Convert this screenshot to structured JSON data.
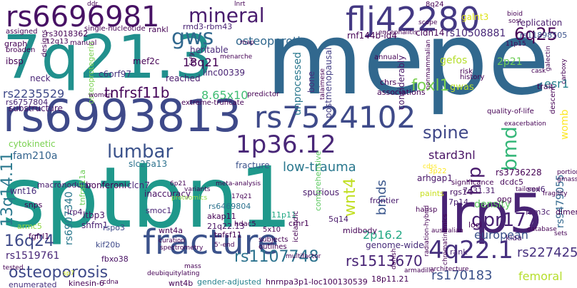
{
  "words": [
    {
      "text": "sptbn1",
      "color": "#1f988b"
    },
    {
      "text": "mepe",
      "color": "#31688e"
    },
    {
      "text": "7q21.3",
      "color": "#21908d"
    },
    {
      "text": "rs6993813",
      "color": "#3e4989"
    },
    {
      "text": "lrp5",
      "color": "#482374"
    },
    {
      "text": "fracture",
      "color": "#3b528b"
    },
    {
      "text": "rs6696981",
      "color": "#471164"
    },
    {
      "text": "flj42280",
      "color": "#443983"
    },
    {
      "text": "rs7524102",
      "color": "#3e4a89"
    },
    {
      "text": "4q22.1",
      "color": "#46307e"
    },
    {
      "text": "1p36.12",
      "color": "#482677"
    },
    {
      "text": "bmd",
      "color": "#35b779"
    },
    {
      "text": "mineral",
      "color": "#481b6d"
    },
    {
      "text": "gws",
      "color": "#31688e"
    },
    {
      "text": "lumbar",
      "color": "#3b528b"
    },
    {
      "text": "fracture",
      "color": "#3b528b"
    },
    {
      "text": "6q25",
      "color": "#440154"
    },
    {
      "text": "spine",
      "color": "#3f4788"
    },
    {
      "text": "hip",
      "color": "#481a6c"
    },
    {
      "text": "gpr177",
      "color": "#482173"
    },
    {
      "text": "wnt4",
      "color": "#c2df23"
    },
    {
      "text": "13q14.11",
      "color": "#2a788e"
    },
    {
      "text": "16q24",
      "color": "#3e4a89"
    },
    {
      "text": "osteoporosis",
      "color": "#3e4989"
    },
    {
      "text": "rs1107748",
      "color": "#2c728e"
    },
    {
      "text": "rs1513670",
      "color": "#482475"
    },
    {
      "text": "rs170183",
      "color": "#3b528b"
    },
    {
      "text": "rs227425",
      "color": "#46307e"
    },
    {
      "text": "tnfrsf11b",
      "color": "#450559"
    },
    {
      "text": "osteoporotic",
      "color": "#31688e"
    },
    {
      "text": "foxl1",
      "color": "#7ad151"
    },
    {
      "text": "low-trauma",
      "color": "#2a788e"
    },
    {
      "text": "rs2235529",
      "color": "#3e4989"
    },
    {
      "text": "8.65x10",
      "color": "#3fbc73"
    },
    {
      "text": "18q21",
      "color": "#440154"
    },
    {
      "text": "esr1",
      "color": "#26828e"
    },
    {
      "text": "rs10508881",
      "color": "#482878"
    },
    {
      "text": "stard3nl",
      "color": "#471164"
    },
    {
      "text": "bmds",
      "color": "#39568c"
    },
    {
      "text": "density",
      "color": "#5ec962"
    },
    {
      "text": "european",
      "color": "#3b528b"
    },
    {
      "text": "femoral",
      "color": "#b5de2b"
    },
    {
      "text": "2p16.2",
      "color": "#22a884"
    },
    {
      "text": "rs9479055",
      "color": "#31688e"
    },
    {
      "text": "womb",
      "color": "#fde725"
    },
    {
      "text": "rs6907340",
      "color": "#2a788e"
    },
    {
      "text": "rs1519761",
      "color": "#482677"
    },
    {
      "text": "fam210a",
      "color": "#33638d"
    },
    {
      "text": "genome-wide",
      "color": "#472c7a"
    },
    {
      "text": "unprocessed",
      "color": "#2a788e"
    },
    {
      "text": "considerably",
      "color": "#481668"
    },
    {
      "text": "postmenopausal",
      "color": "#433e85"
    },
    {
      "text": "rnf144b-id4",
      "color": "#440154"
    },
    {
      "text": "replication",
      "color": "#481b6d"
    },
    {
      "text": "galnt3",
      "color": "#dde318"
    },
    {
      "text": "cldn14",
      "color": "#440154"
    },
    {
      "text": "2p21",
      "color": "#6ece58"
    },
    {
      "text": "gefos",
      "color": "#b5de2b"
    },
    {
      "text": "rs11898505",
      "color": "#3b528b"
    },
    {
      "text": "rmd3-rbm43",
      "color": "#482173"
    },
    {
      "text": "rankl",
      "color": "#440154"
    },
    {
      "text": "heritable",
      "color": "#482878"
    },
    {
      "text": "mef2c",
      "color": "#440154"
    },
    {
      "text": "c6orf97",
      "color": "#46337f"
    },
    {
      "text": "reached",
      "color": "#481b6d"
    },
    {
      "text": "linc00339",
      "color": "#482374"
    },
    {
      "text": "trait",
      "color": "#440154"
    },
    {
      "text": "substructure",
      "color": "#481769"
    },
    {
      "text": "rs6757804",
      "color": "#482475"
    },
    {
      "text": "cytokinetic",
      "color": "#7ad151"
    },
    {
      "text": "slc25a13",
      "color": "#2c728e"
    },
    {
      "text": "clcn7",
      "color": "#482576"
    },
    {
      "text": "arhgap1",
      "color": "#481668"
    },
    {
      "text": "rs3736228",
      "color": "#440154"
    },
    {
      "text": "dcdc5",
      "color": "#46075a"
    },
    {
      "text": "sox6",
      "color": "#482475"
    },
    {
      "text": "7q31.31",
      "color": "#481769"
    },
    {
      "text": "paints",
      "color": "#c8e020"
    },
    {
      "text": "spurious",
      "color": "#481a6c"
    },
    {
      "text": "inaccuracy",
      "color": "#471063"
    },
    {
      "text": "bonferoni",
      "color": "#440154"
    },
    {
      "text": "macronodular",
      "color": "#481b6d"
    },
    {
      "text": "wnt16",
      "color": "#472d7b"
    },
    {
      "text": "rs6469804",
      "color": "#2c728e"
    },
    {
      "text": "akap11",
      "color": "#440154"
    },
    {
      "text": "21q22.13",
      "color": "#471063"
    },
    {
      "text": "snps",
      "color": "#440154"
    },
    {
      "text": "lrp4",
      "color": "#481b6d"
    },
    {
      "text": "ltbp3",
      "color": "#471365"
    },
    {
      "text": "shfm1",
      "color": "#482071"
    },
    {
      "text": "rspo3",
      "color": "#3e4989"
    },
    {
      "text": "smoc1",
      "color": "#482374"
    },
    {
      "text": "armc5",
      "color": "#90d743"
    },
    {
      "text": "fgfrl1",
      "color": "#440154"
    },
    {
      "text": "tnfsf11",
      "color": "#440154"
    },
    {
      "text": "11p11",
      "color": "#22a884"
    },
    {
      "text": "5q14",
      "color": "#48186a"
    },
    {
      "text": "frontier",
      "color": "#481b6d"
    },
    {
      "text": "rgs14",
      "color": "#471365"
    },
    {
      "text": "7p14",
      "color": "#482071"
    },
    {
      "text": "opg",
      "color": "#440154"
    },
    {
      "text": "fam3c",
      "color": "#481a6c"
    },
    {
      "text": "sp7",
      "color": "#c8e020"
    },
    {
      "text": "kiaa",
      "color": "#481b6d"
    },
    {
      "text": "loci",
      "color": "#440154"
    },
    {
      "text": "rank",
      "color": "#482374"
    },
    {
      "text": "wnt4a",
      "color": "#440154"
    },
    {
      "text": "kif20b",
      "color": "#3e4989"
    },
    {
      "text": "fbxo38",
      "color": "#471063"
    },
    {
      "text": "kinesin-6",
      "color": "#440154"
    },
    {
      "text": "wnt4b",
      "color": "#440154"
    },
    {
      "text": "gender-adjusted",
      "color": "#26828e"
    },
    {
      "text": "hnrnpa3p1-loc100130539",
      "color": "#440154"
    },
    {
      "text": "18p11.21",
      "color": "#440154"
    },
    {
      "text": "tnfrsf11a",
      "color": "#6ece58"
    },
    {
      "text": "enumerated",
      "color": "#46307e"
    },
    {
      "text": "crhr1",
      "color": "#440154"
    },
    {
      "text": "hdac5",
      "color": "#440154"
    },
    {
      "text": "5x10",
      "color": "#440154"
    },
    {
      "text": "midbody",
      "color": "#440154"
    },
    {
      "text": "subjects",
      "color": "#440154"
    },
    {
      "text": "outlines",
      "color": "#440154"
    },
    {
      "text": "hausp",
      "color": "#440154"
    },
    {
      "text": "significance",
      "color": "#440154"
    },
    {
      "text": "comprehensive",
      "color": "#5ec962"
    },
    {
      "text": "icelandic",
      "color": "#440154"
    },
    {
      "text": "gwas",
      "color": "#b5de2b"
    },
    {
      "text": "bone",
      "color": "#46307e"
    },
    {
      "text": "neck",
      "color": "#482374"
    },
    {
      "text": "ibsp",
      "color": "#440154"
    },
    {
      "text": "graph",
      "color": "#440154"
    },
    {
      "text": "broaden",
      "color": "#440154"
    },
    {
      "text": "rs3018362",
      "color": "#440154"
    },
    {
      "text": "12q13",
      "color": "#440154"
    },
    {
      "text": "single-nucleotide",
      "color": "#440154"
    },
    {
      "text": "assigned",
      "color": "#440154"
    },
    {
      "text": "manual",
      "color": "#440154"
    },
    {
      "text": "designs",
      "color": "#440154"
    },
    {
      "text": "osteoprotegerin",
      "color": "#7ad151"
    },
    {
      "text": "associations",
      "color": "#440154"
    },
    {
      "text": "chrs",
      "color": "#440154"
    },
    {
      "text": "annual",
      "color": "#440154"
    },
    {
      "text": "history",
      "color": "#440154"
    },
    {
      "text": "risk",
      "color": "#440154"
    },
    {
      "text": "quality-of-life",
      "color": "#440154"
    },
    {
      "text": "descent",
      "color": "#440154"
    },
    {
      "text": "women",
      "color": "#440154"
    },
    {
      "text": "extreme-truncate",
      "color": "#440154"
    },
    {
      "text": "predictor",
      "color": "#440154"
    },
    {
      "text": "8q24",
      "color": "#440154"
    },
    {
      "text": "ddr",
      "color": "#440154"
    },
    {
      "text": "11p15",
      "color": "#440154"
    },
    {
      "text": "scope",
      "color": "#440154"
    },
    {
      "text": "bioid",
      "color": "#440154"
    },
    {
      "text": "sost",
      "color": "#440154"
    },
    {
      "text": "encephalitis",
      "color": "#440154"
    },
    {
      "text": "map",
      "color": "#440154"
    },
    {
      "text": "mass",
      "color": "#440154"
    },
    {
      "text": "meta-analysis",
      "color": "#440154"
    },
    {
      "text": "variants",
      "color": "#440154"
    },
    {
      "text": "proteomics",
      "color": "#90d743"
    },
    {
      "text": "curation",
      "color": "#440154"
    },
    {
      "text": "spectrometry",
      "color": "#440154"
    },
    {
      "text": "database",
      "color": "#440154"
    },
    {
      "text": "sets",
      "color": "#440154"
    },
    {
      "text": "tailored",
      "color": "#440154"
    },
    {
      "text": "portion",
      "color": "#440154"
    },
    {
      "text": "gmass",
      "color": "#440154"
    },
    {
      "text": "fragility",
      "color": "#440154"
    },
    {
      "text": "3p22",
      "color": "#fde725"
    },
    {
      "text": "australian",
      "color": "#440154"
    },
    {
      "text": "armadillo",
      "color": "#440154"
    },
    {
      "text": "architecture",
      "color": "#440154"
    },
    {
      "text": "dimensionality",
      "color": "#440154"
    },
    {
      "text": "chromatinomics",
      "color": "#440154"
    },
    {
      "text": "danish",
      "color": "#440154"
    },
    {
      "text": "multifactor",
      "color": "#440154"
    },
    {
      "text": "tested",
      "color": "#440154"
    },
    {
      "text": "deubiquitylating",
      "color": "#440154"
    },
    {
      "text": "cdna",
      "color": "#440154"
    },
    {
      "text": "17q21",
      "color": "#440154"
    },
    {
      "text": "6p21",
      "color": "#440154"
    },
    {
      "text": "menarche",
      "color": "#440154"
    },
    {
      "text": "cdss",
      "color": "#fde725"
    },
    {
      "text": "5'-end",
      "color": "#440154"
    },
    {
      "text": "radiation-hybrid",
      "color": "#440154"
    },
    {
      "text": "carboxy",
      "color": "#440154"
    },
    {
      "text": "galectin",
      "color": "#440154"
    },
    {
      "text": "cask",
      "color": "#440154"
    },
    {
      "text": "fgf9",
      "color": "#440154"
    },
    {
      "text": "nonmammalian",
      "color": "#440154"
    },
    {
      "text": "exacerbation",
      "color": "#440154"
    },
    {
      "text": "talaimese",
      "color": "#440154"
    },
    {
      "text": "lnrt",
      "color": "#440154"
    }
  ]
}
